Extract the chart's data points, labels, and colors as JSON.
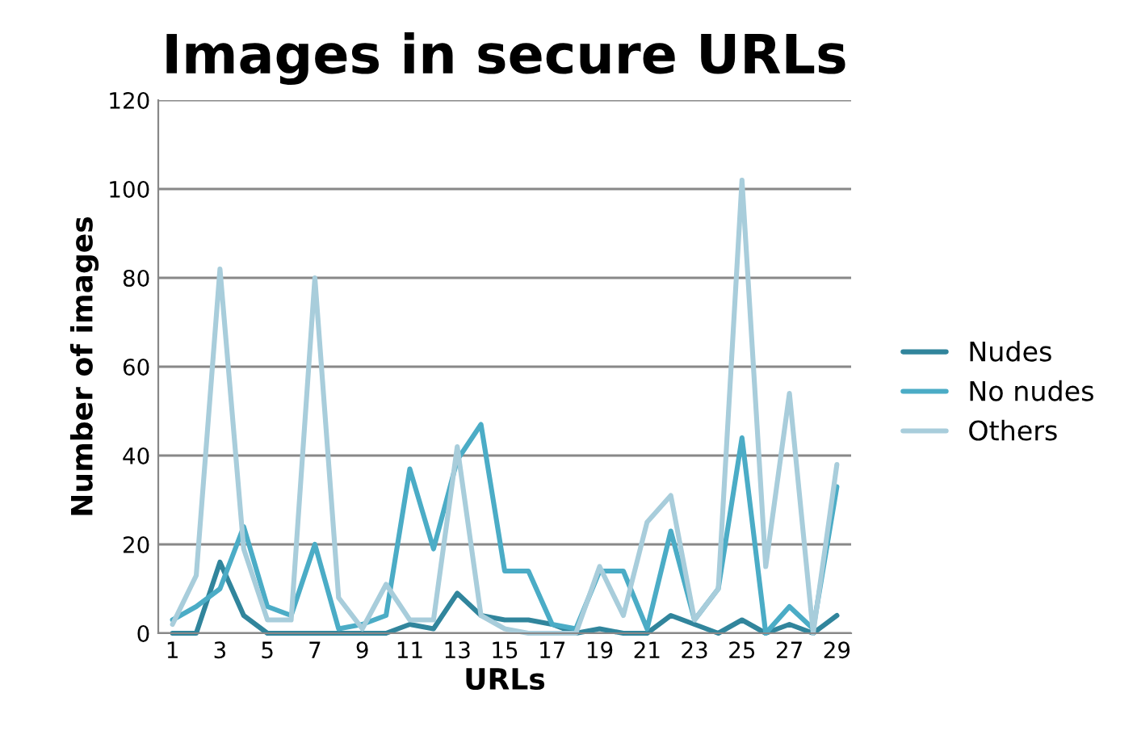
{
  "chart_data": {
    "type": "line",
    "title": "Images in secure URLs",
    "xlabel": "URLs",
    "ylabel": "Number of images",
    "categories": [
      "1",
      null,
      "3",
      null,
      "5",
      null,
      "7",
      null,
      "9",
      null,
      "11",
      null,
      "13",
      null,
      "15",
      null,
      "17",
      null,
      "19",
      null,
      "21",
      null,
      "23",
      null,
      "25",
      null,
      "27",
      null,
      "29"
    ],
    "series": [
      {
        "name": "Nudes",
        "color": "#31859c",
        "values": [
          0,
          0,
          16,
          4,
          0,
          0,
          0,
          0,
          0,
          0,
          2,
          1,
          9,
          4,
          3,
          3,
          2,
          0,
          1,
          0,
          0,
          4,
          2,
          0,
          3,
          0,
          2,
          0,
          4
        ]
      },
      {
        "name": "No nudes",
        "color": "#4bacc6",
        "values": [
          3,
          6,
          10,
          24,
          6,
          4,
          20,
          1,
          2,
          4,
          37,
          19,
          39,
          47,
          14,
          14,
          2,
          1,
          14,
          14,
          1,
          23,
          3,
          10,
          44,
          0,
          6,
          1,
          33
        ]
      },
      {
        "name": "Others",
        "color": "#a8cddb",
        "values": [
          2,
          13,
          82,
          19,
          3,
          3,
          80,
          8,
          1,
          11,
          3,
          3,
          42,
          4,
          1,
          0,
          0,
          0,
          15,
          4,
          25,
          31,
          3,
          10,
          102,
          15,
          54,
          0,
          38
        ]
      }
    ],
    "ylim": [
      0,
      120
    ],
    "yticks": [
      0,
      20,
      40,
      60,
      80,
      100,
      120
    ],
    "grid": "y",
    "legend": "right",
    "marker": "none",
    "line_style": "solid"
  }
}
